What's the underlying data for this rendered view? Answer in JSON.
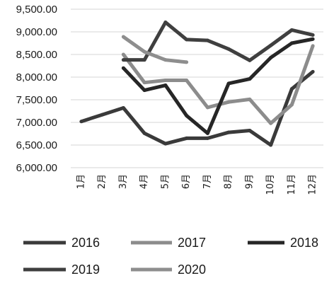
{
  "chart_data": {
    "type": "line",
    "title": "",
    "xlabel": "",
    "ylabel": "",
    "categories": [
      "1月",
      "2月",
      "3月",
      "4月",
      "5月",
      "6月",
      "7月",
      "8月",
      "9月",
      "10月",
      "11月",
      "12月"
    ],
    "yticks": [
      "6,000.00",
      "6,500.00",
      "7,000.00",
      "7,500.00",
      "8,000.00",
      "8,500.00",
      "9,000.00",
      "9,500.00"
    ],
    "ylim": [
      6000,
      9500
    ],
    "grid": true,
    "legend_position": "bottom",
    "series": [
      {
        "name": "2016",
        "color": "#3a3a3a",
        "values": [
          7020,
          7170,
          7320,
          6760,
          6530,
          6650,
          6650,
          6780,
          6820,
          6500,
          7740,
          8120
        ]
      },
      {
        "name": "2017",
        "color": "#8c8c8c",
        "values": [
          null,
          null,
          8500,
          7880,
          7930,
          7930,
          7330,
          7450,
          7510,
          6980,
          7390,
          8690
        ]
      },
      {
        "name": "2018",
        "color": "#262626",
        "values": [
          null,
          null,
          8200,
          7710,
          7820,
          7150,
          6760,
          7860,
          7960,
          8430,
          8750,
          8840
        ]
      },
      {
        "name": "2019",
        "color": "#3f3f3f",
        "values": [
          null,
          null,
          8380,
          8380,
          9210,
          8830,
          8810,
          8620,
          8370,
          8700,
          9040,
          8930
        ]
      },
      {
        "name": "2020",
        "color": "#8e8e8e",
        "values": [
          null,
          null,
          8890,
          8560,
          8380,
          8330,
          null,
          null,
          null,
          null,
          null,
          null
        ]
      }
    ]
  }
}
